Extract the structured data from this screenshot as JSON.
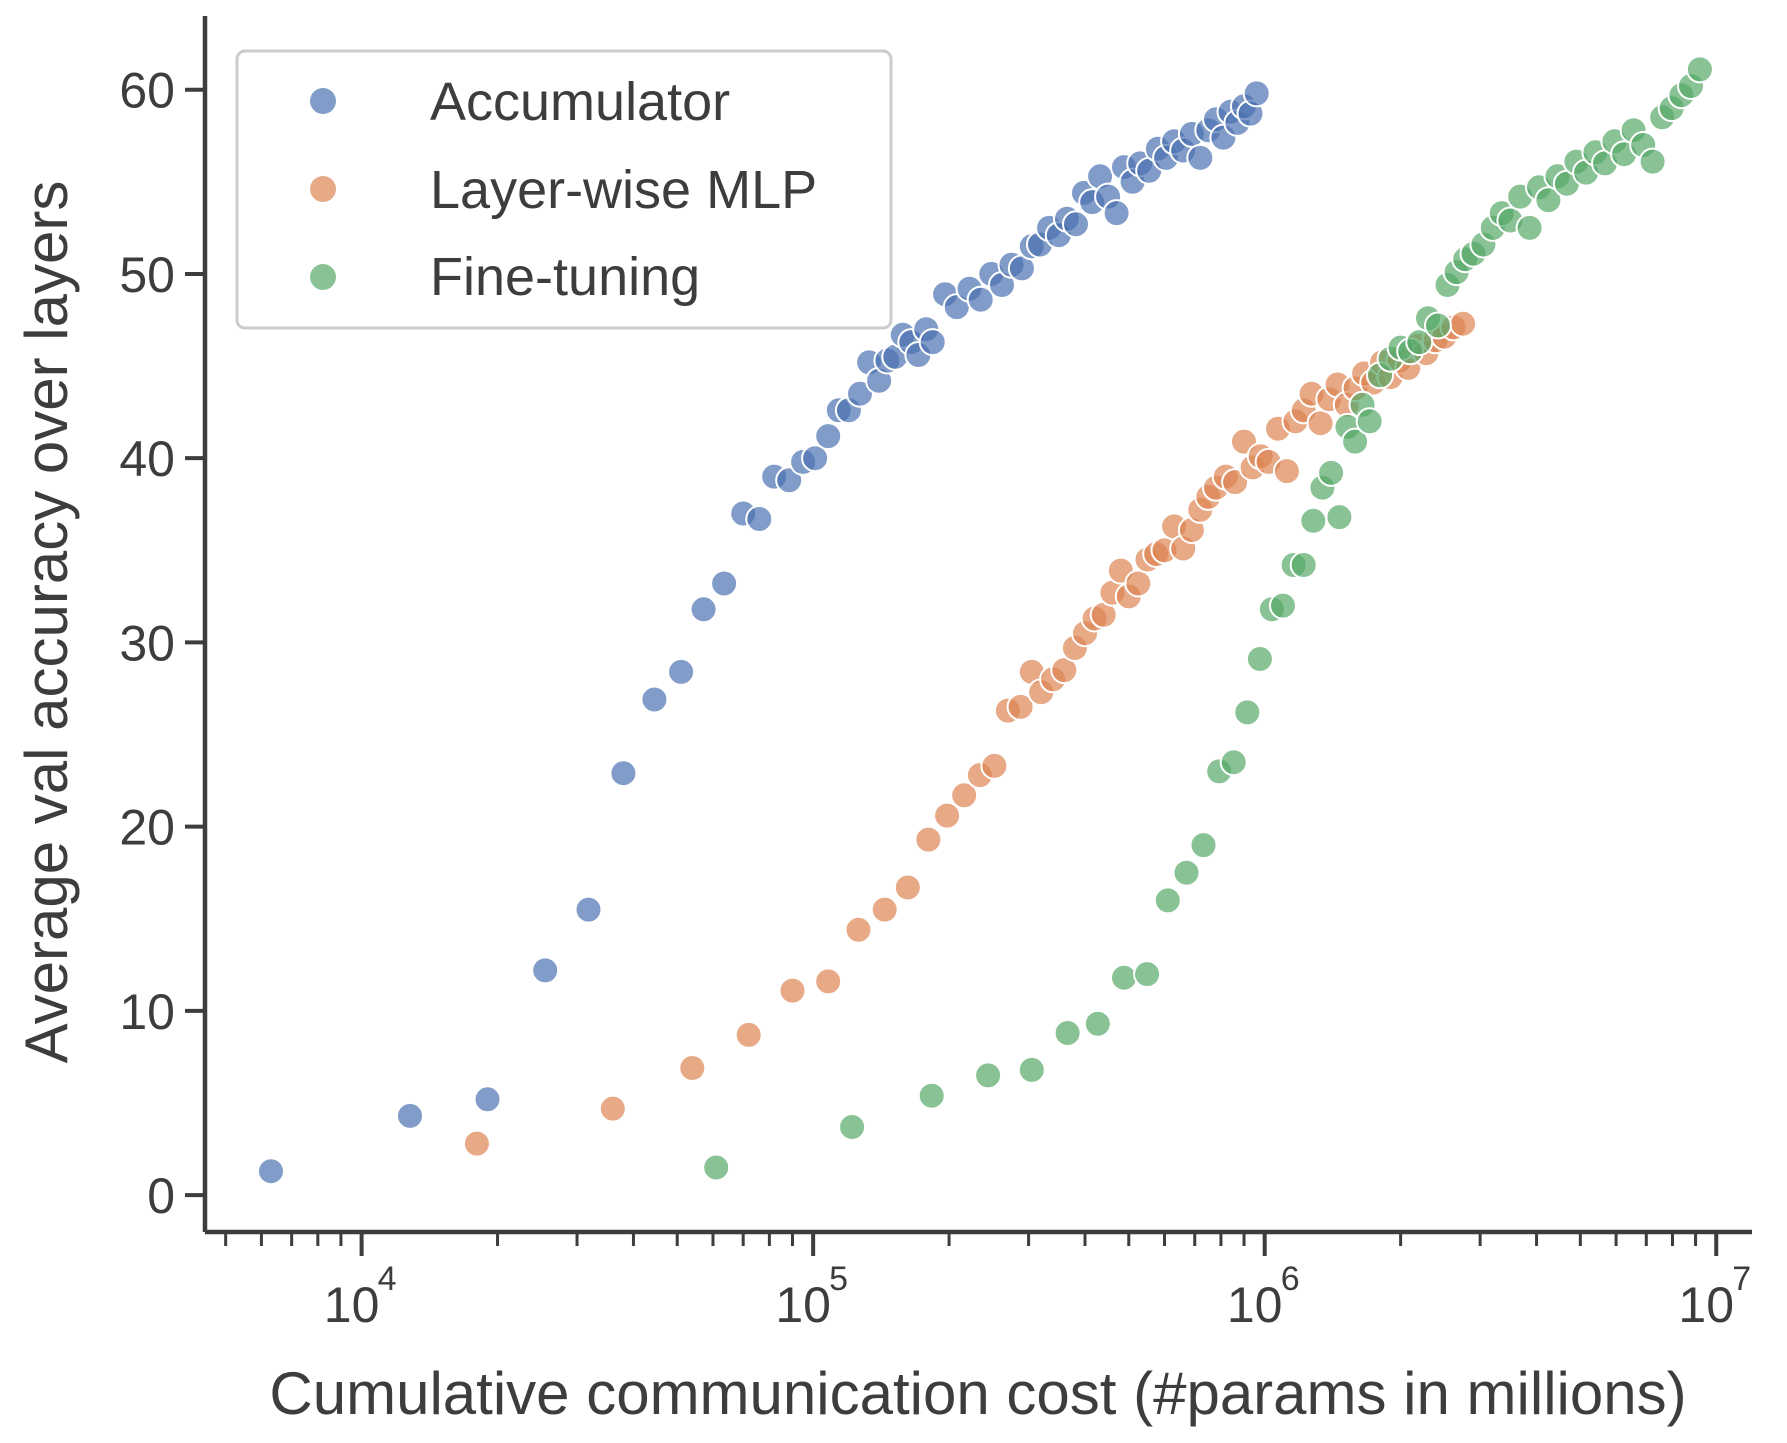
{
  "chart_data": {
    "type": "scatter",
    "title": "",
    "xlabel": "Cumulative communication cost (#params in millions)",
    "ylabel": "Average val accuracy over layers",
    "xscale": "log",
    "xlim": [
      4500,
      12000000
    ],
    "ylim": [
      -2,
      64
    ],
    "x_ticks": [
      {
        "value": 10000,
        "base": "10",
        "exp": "4"
      },
      {
        "value": 100000,
        "base": "10",
        "exp": "5"
      },
      {
        "value": 1000000,
        "base": "10",
        "exp": "6"
      },
      {
        "value": 10000000,
        "base": "10",
        "exp": "7"
      }
    ],
    "y_ticks": [
      {
        "value": 0,
        "label": "0"
      },
      {
        "value": 10,
        "label": "10"
      },
      {
        "value": 20,
        "label": "20"
      },
      {
        "value": 30,
        "label": "30"
      },
      {
        "value": 40,
        "label": "40"
      },
      {
        "value": 50,
        "label": "50"
      },
      {
        "value": 60,
        "label": "60"
      }
    ],
    "grid": false,
    "legend": {
      "position": "top-left"
    },
    "series": [
      {
        "name": "Accumulator",
        "color": "#4C72B0",
        "points": [
          [
            6300,
            1.3
          ],
          [
            12800,
            4.3
          ],
          [
            19000,
            5.2
          ],
          [
            25500,
            12.2
          ],
          [
            31800,
            15.5
          ],
          [
            38000,
            22.9
          ],
          [
            44500,
            26.9
          ],
          [
            51000,
            28.4
          ],
          [
            57200,
            31.8
          ],
          [
            63500,
            33.2
          ],
          [
            70000,
            37.0
          ],
          [
            76000,
            36.7
          ],
          [
            82000,
            39.0
          ],
          [
            88500,
            38.8
          ],
          [
            95000,
            39.8
          ],
          [
            101000,
            40.0
          ],
          [
            108000,
            41.2
          ],
          [
            114000,
            42.6
          ],
          [
            120000,
            42.6
          ],
          [
            127000,
            43.5
          ],
          [
            133000,
            45.2
          ],
          [
            140000,
            44.2
          ],
          [
            146000,
            45.3
          ],
          [
            152000,
            45.5
          ],
          [
            158000,
            46.7
          ],
          [
            165000,
            46.3
          ],
          [
            171000,
            45.6
          ],
          [
            178000,
            47.0
          ],
          [
            184000,
            46.3
          ],
          [
            196000,
            48.9
          ],
          [
            208000,
            48.2
          ],
          [
            222000,
            49.2
          ],
          [
            235000,
            48.6
          ],
          [
            248000,
            50.0
          ],
          [
            262000,
            49.4
          ],
          [
            275000,
            50.5
          ],
          [
            290000,
            50.3
          ],
          [
            305000,
            51.5
          ],
          [
            318000,
            51.6
          ],
          [
            333000,
            52.5
          ],
          [
            350000,
            52.1
          ],
          [
            365000,
            53.0
          ],
          [
            382000,
            52.7
          ],
          [
            398000,
            54.4
          ],
          [
            415000,
            53.9
          ],
          [
            432000,
            55.3
          ],
          [
            450000,
            54.2
          ],
          [
            470000,
            53.3
          ],
          [
            488000,
            55.8
          ],
          [
            510000,
            55.0
          ],
          [
            530000,
            56.0
          ],
          [
            555000,
            55.6
          ],
          [
            580000,
            56.8
          ],
          [
            605000,
            56.3
          ],
          [
            630000,
            57.2
          ],
          [
            660000,
            56.7
          ],
          [
            690000,
            57.6
          ],
          [
            720000,
            56.3
          ],
          [
            750000,
            57.8
          ],
          [
            780000,
            58.4
          ],
          [
            810000,
            57.4
          ],
          [
            840000,
            58.8
          ],
          [
            870000,
            58.2
          ],
          [
            900000,
            59.1
          ],
          [
            930000,
            58.7
          ],
          [
            960000,
            59.8
          ]
        ]
      },
      {
        "name": "Layer-wise MLP",
        "color": "#DD8452",
        "points": [
          [
            18000,
            2.8
          ],
          [
            36000,
            4.7
          ],
          [
            54000,
            6.9
          ],
          [
            72000,
            8.7
          ],
          [
            90000,
            11.1
          ],
          [
            108000,
            11.6
          ],
          [
            126000,
            14.4
          ],
          [
            144000,
            15.5
          ],
          [
            162000,
            16.7
          ],
          [
            180000,
            19.3
          ],
          [
            198000,
            20.6
          ],
          [
            216000,
            21.7
          ],
          [
            234000,
            22.8
          ],
          [
            252000,
            23.3
          ],
          [
            270000,
            26.3
          ],
          [
            288000,
            26.5
          ],
          [
            305000,
            28.4
          ],
          [
            320000,
            27.3
          ],
          [
            340000,
            28.0
          ],
          [
            360000,
            28.5
          ],
          [
            380000,
            29.7
          ],
          [
            400000,
            30.5
          ],
          [
            420000,
            31.3
          ],
          [
            440000,
            31.5
          ],
          [
            460000,
            32.7
          ],
          [
            480000,
            33.9
          ],
          [
            500000,
            32.5
          ],
          [
            525000,
            33.2
          ],
          [
            550000,
            34.5
          ],
          [
            575000,
            34.8
          ],
          [
            600000,
            35.0
          ],
          [
            630000,
            36.3
          ],
          [
            660000,
            35.1
          ],
          [
            690000,
            36.1
          ],
          [
            720000,
            37.2
          ],
          [
            750000,
            37.9
          ],
          [
            780000,
            38.4
          ],
          [
            820000,
            39.0
          ],
          [
            860000,
            38.7
          ],
          [
            900000,
            40.9
          ],
          [
            940000,
            39.5
          ],
          [
            980000,
            40.1
          ],
          [
            1020000,
            39.8
          ],
          [
            1070000,
            41.6
          ],
          [
            1120000,
            39.3
          ],
          [
            1170000,
            42.0
          ],
          [
            1220000,
            42.6
          ],
          [
            1270000,
            43.5
          ],
          [
            1330000,
            41.9
          ],
          [
            1390000,
            43.2
          ],
          [
            1450000,
            44.0
          ],
          [
            1520000,
            42.9
          ],
          [
            1590000,
            43.8
          ],
          [
            1660000,
            44.6
          ],
          [
            1740000,
            44.1
          ],
          [
            1820000,
            45.2
          ],
          [
            1900000,
            44.4
          ],
          [
            1990000,
            45.3
          ],
          [
            2080000,
            44.9
          ],
          [
            2180000,
            46.1
          ],
          [
            2280000,
            45.7
          ],
          [
            2390000,
            46.4
          ],
          [
            2500000,
            46.6
          ],
          [
            2620000,
            47.1
          ],
          [
            2750000,
            47.3
          ]
        ]
      },
      {
        "name": "Fine-tuning",
        "color": "#55A868",
        "points": [
          [
            61000,
            1.5
          ],
          [
            122000,
            3.7
          ],
          [
            183000,
            5.4
          ],
          [
            244000,
            6.5
          ],
          [
            305000,
            6.8
          ],
          [
            366000,
            8.8
          ],
          [
            427000,
            9.3
          ],
          [
            488000,
            11.8
          ],
          [
            549000,
            12.0
          ],
          [
            610000,
            16.0
          ],
          [
            671000,
            17.5
          ],
          [
            732000,
            19.0
          ],
          [
            793000,
            23.0
          ],
          [
            854000,
            23.5
          ],
          [
            915000,
            26.2
          ],
          [
            976000,
            29.1
          ],
          [
            1037000,
            31.8
          ],
          [
            1098000,
            32.0
          ],
          [
            1159000,
            34.2
          ],
          [
            1220000,
            34.2
          ],
          [
            1281000,
            36.6
          ],
          [
            1342000,
            38.4
          ],
          [
            1403000,
            39.2
          ],
          [
            1464000,
            36.8
          ],
          [
            1525000,
            41.7
          ],
          [
            1586000,
            40.9
          ],
          [
            1647000,
            42.9
          ],
          [
            1708000,
            42.0
          ],
          [
            1800000,
            44.5
          ],
          [
            1900000,
            45.4
          ],
          [
            2000000,
            46.0
          ],
          [
            2100000,
            45.8
          ],
          [
            2200000,
            46.3
          ],
          [
            2300000,
            47.6
          ],
          [
            2420000,
            47.2
          ],
          [
            2540000,
            49.4
          ],
          [
            2660000,
            50.1
          ],
          [
            2780000,
            50.8
          ],
          [
            2900000,
            51.1
          ],
          [
            3050000,
            51.6
          ],
          [
            3200000,
            52.5
          ],
          [
            3350000,
            53.3
          ],
          [
            3500000,
            52.9
          ],
          [
            3680000,
            54.2
          ],
          [
            3860000,
            52.5
          ],
          [
            4050000,
            54.7
          ],
          [
            4250000,
            54.0
          ],
          [
            4450000,
            55.3
          ],
          [
            4670000,
            54.9
          ],
          [
            4900000,
            56.1
          ],
          [
            5150000,
            55.5
          ],
          [
            5400000,
            56.6
          ],
          [
            5670000,
            56.0
          ],
          [
            5950000,
            57.2
          ],
          [
            6250000,
            56.5
          ],
          [
            6560000,
            57.8
          ],
          [
            6890000,
            57.0
          ],
          [
            7230000,
            56.1
          ],
          [
            7590000,
            58.5
          ],
          [
            7970000,
            59.0
          ],
          [
            8370000,
            59.7
          ],
          [
            8790000,
            60.2
          ],
          [
            9200000,
            61.1
          ]
        ]
      }
    ]
  }
}
